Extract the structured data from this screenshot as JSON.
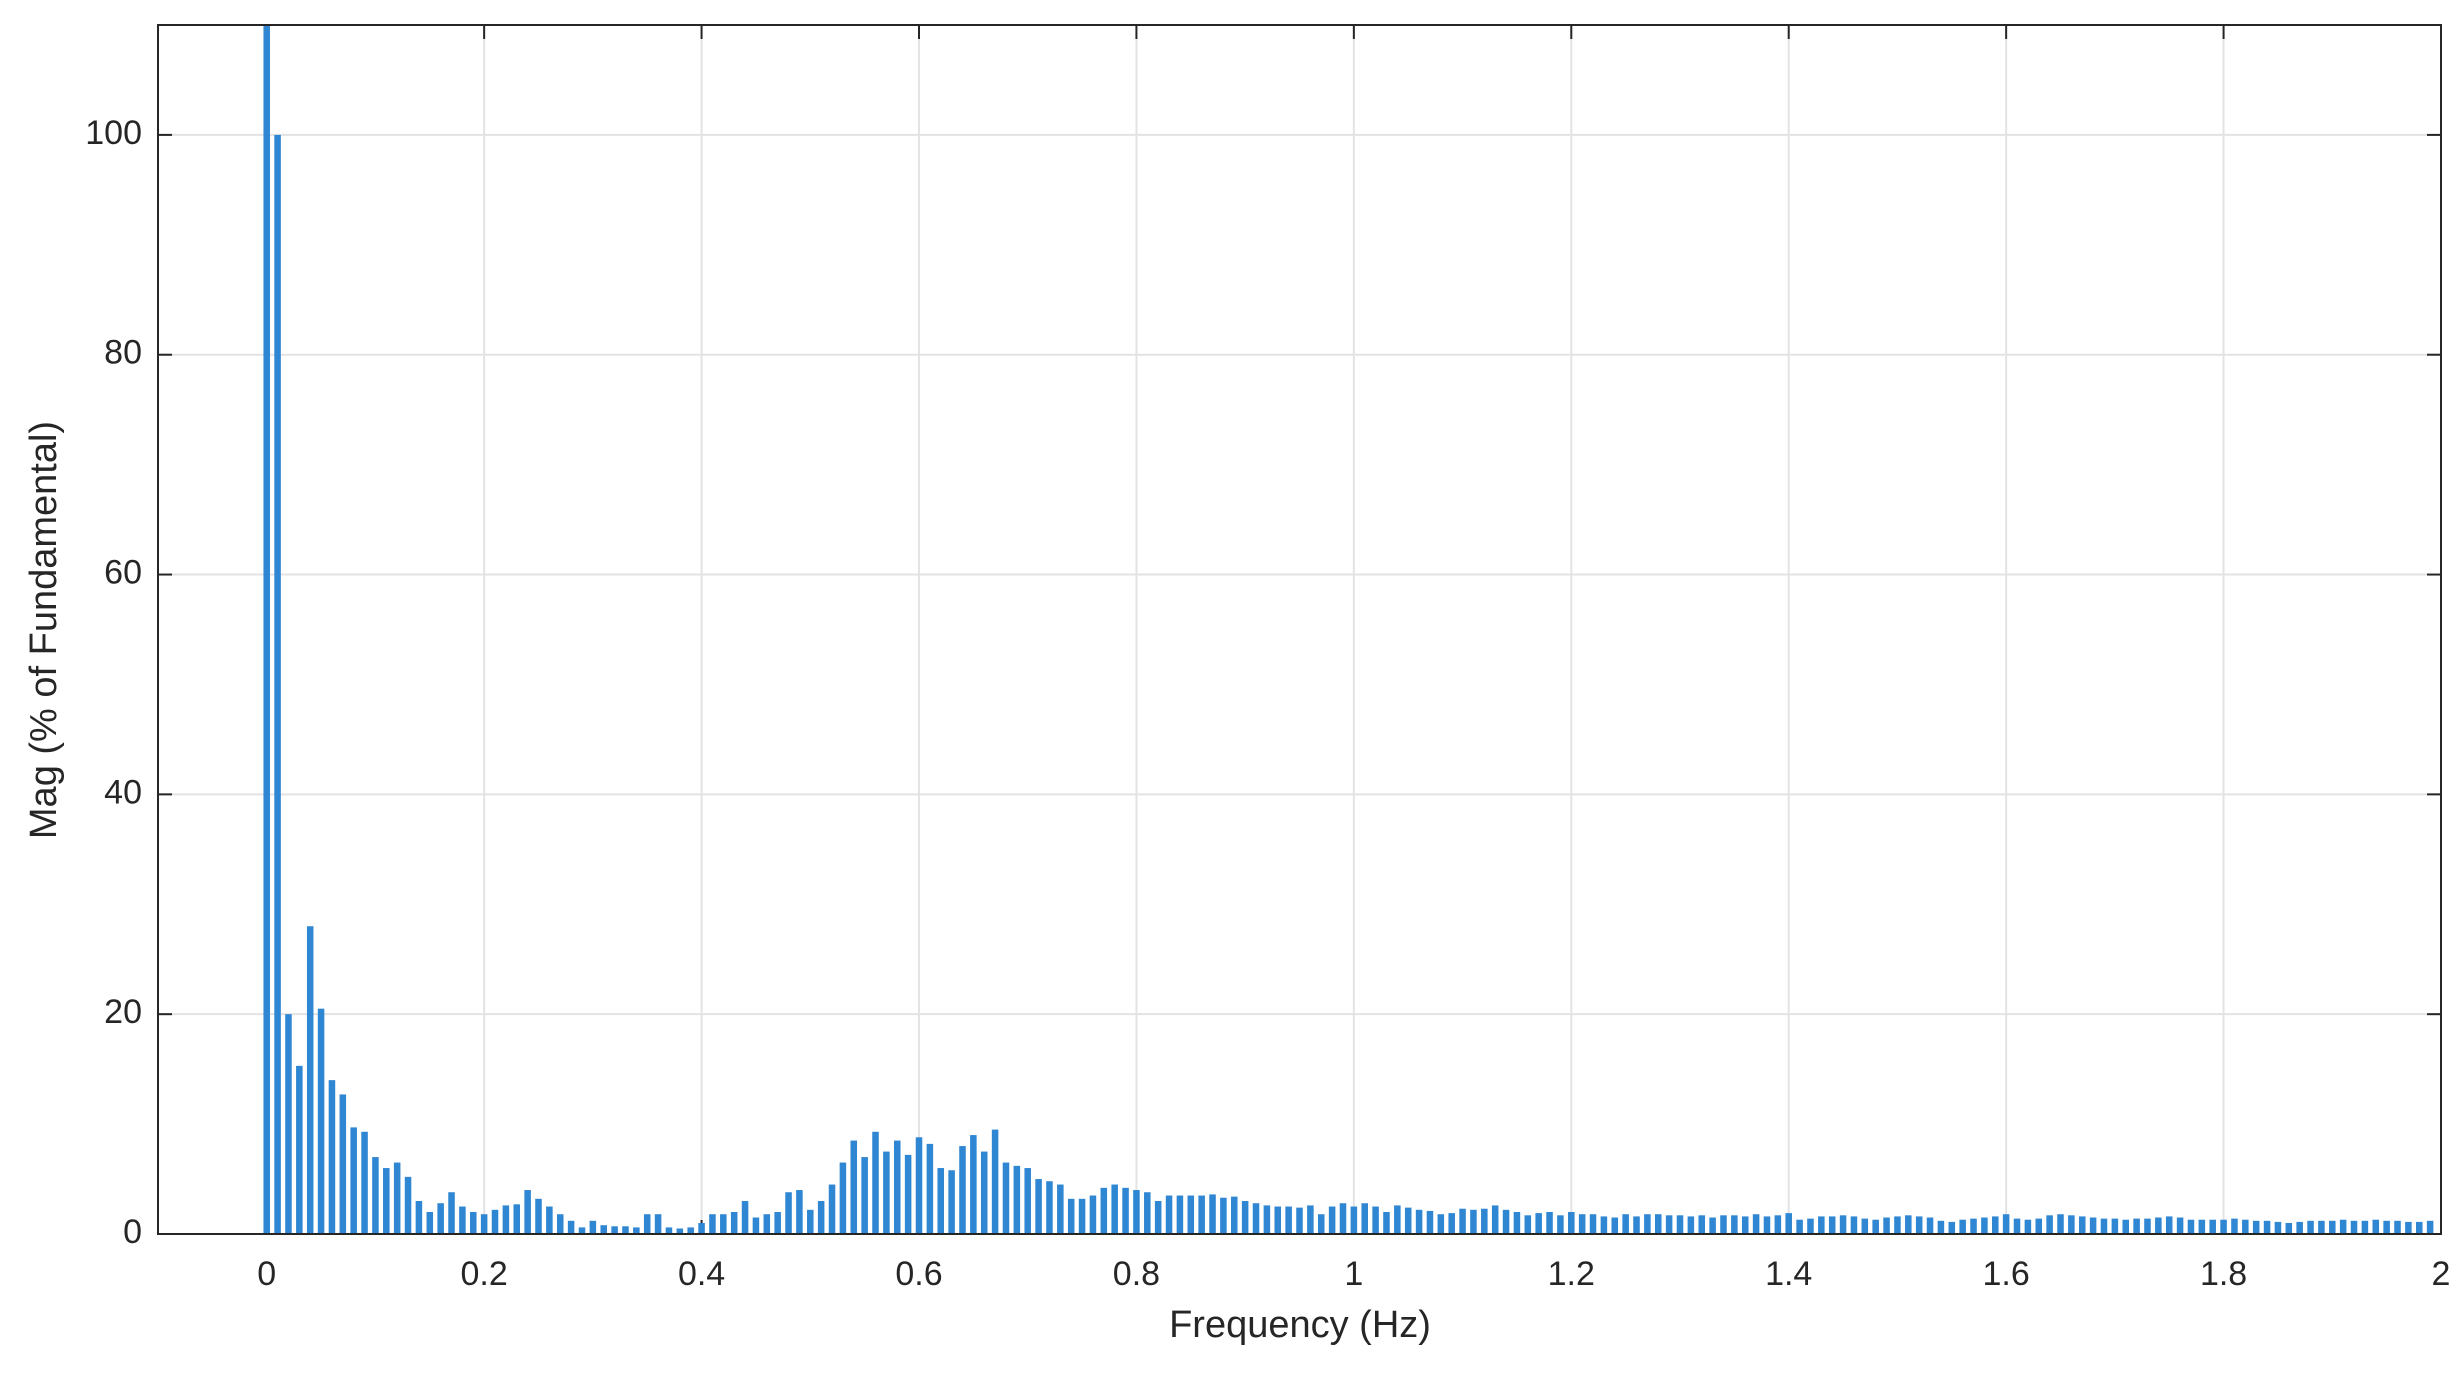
{
  "chart_data": {
    "type": "bar",
    "xlabel": "Frequency (Hz)",
    "ylabel": "Mag (% of Fundamental)",
    "x": [
      0,
      0.01,
      0.02,
      0.03,
      0.04,
      0.05,
      0.06,
      0.07,
      0.08,
      0.09,
      0.1,
      0.11,
      0.12,
      0.13,
      0.14,
      0.15,
      0.16,
      0.17,
      0.18,
      0.19,
      0.2,
      0.21,
      0.22,
      0.23,
      0.24,
      0.25,
      0.26,
      0.27,
      0.28,
      0.29,
      0.3,
      0.31,
      0.32,
      0.33,
      0.34,
      0.35,
      0.36,
      0.37,
      0.38,
      0.39,
      0.4,
      0.41,
      0.42,
      0.43,
      0.44,
      0.45,
      0.46,
      0.47,
      0.48,
      0.49,
      0.5,
      0.51,
      0.52,
      0.53,
      0.54,
      0.55,
      0.56,
      0.57,
      0.58,
      0.59,
      0.6,
      0.61,
      0.62,
      0.63,
      0.64,
      0.65,
      0.66,
      0.67,
      0.68,
      0.69,
      0.7,
      0.71,
      0.72,
      0.73,
      0.74,
      0.75,
      0.76,
      0.77,
      0.78,
      0.79,
      0.8,
      0.81,
      0.82,
      0.83,
      0.84,
      0.85,
      0.86,
      0.87,
      0.88,
      0.89,
      0.9,
      0.91,
      0.92,
      0.93,
      0.94,
      0.95,
      0.96,
      0.97,
      0.98,
      0.99,
      1,
      1.01,
      1.02,
      1.03,
      1.04,
      1.05,
      1.06,
      1.07,
      1.08,
      1.09,
      1.1,
      1.11,
      1.12,
      1.13,
      1.14,
      1.15,
      1.16,
      1.17,
      1.18,
      1.19,
      1.2,
      1.21,
      1.22,
      1.23,
      1.24,
      1.25,
      1.26,
      1.27,
      1.28,
      1.29,
      1.3,
      1.31,
      1.32,
      1.33,
      1.34,
      1.35,
      1.36,
      1.37,
      1.38,
      1.39,
      1.4,
      1.41,
      1.42,
      1.43,
      1.44,
      1.45,
      1.46,
      1.47,
      1.48,
      1.49,
      1.5,
      1.51,
      1.52,
      1.53,
      1.54,
      1.55,
      1.56,
      1.57,
      1.58,
      1.59,
      1.6,
      1.61,
      1.62,
      1.63,
      1.64,
      1.65,
      1.66,
      1.67,
      1.68,
      1.69,
      1.7,
      1.71,
      1.72,
      1.73,
      1.74,
      1.75,
      1.76,
      1.77,
      1.78,
      1.79,
      1.8,
      1.81,
      1.82,
      1.83,
      1.84,
      1.85,
      1.86,
      1.87,
      1.88,
      1.89,
      1.9,
      1.91,
      1.92,
      1.93,
      1.94,
      1.95,
      1.96,
      1.97,
      1.98,
      1.99
    ],
    "values": [
      110,
      100,
      20,
      15.3,
      28,
      20.5,
      14,
      12.7,
      9.7,
      9.3,
      7,
      6,
      6.5,
      5.2,
      3,
      2,
      2.8,
      3.8,
      2.5,
      2,
      1.8,
      2.2,
      2.6,
      2.7,
      4,
      3.2,
      2.5,
      1.8,
      1.2,
      0.6,
      1.2,
      0.8,
      0.7,
      0.7,
      0.6,
      1.8,
      1.8,
      0.6,
      0.5,
      0.6,
      1,
      1.8,
      1.8,
      2,
      3,
      1.5,
      1.8,
      2,
      3.8,
      4,
      2.2,
      3,
      4.5,
      6.5,
      8.5,
      7,
      9.3,
      7.5,
      8.5,
      7.2,
      8.8,
      8.2,
      6,
      5.8,
      8,
      9,
      7.5,
      9.5,
      6.5,
      6.2,
      6,
      5,
      4.8,
      4.5,
      3.2,
      3.2,
      3.5,
      4.2,
      4.5,
      4.2,
      4,
      3.8,
      3,
      3.5,
      3.5,
      3.5,
      3.5,
      3.6,
      3.3,
      3.4,
      3,
      2.8,
      2.6,
      2.5,
      2.5,
      2.4,
      2.6,
      1.8,
      2.5,
      2.8,
      2.5,
      2.8,
      2.5,
      2,
      2.6,
      2.4,
      2.2,
      2.1,
      1.8,
      1.9,
      2.3,
      2.2,
      2.3,
      2.6,
      2.2,
      2,
      1.7,
      1.9,
      2,
      1.7,
      2,
      1.8,
      1.8,
      1.6,
      1.5,
      1.8,
      1.6,
      1.8,
      1.8,
      1.7,
      1.7,
      1.6,
      1.7,
      1.5,
      1.7,
      1.7,
      1.6,
      1.8,
      1.6,
      1.7,
      1.9,
      1.3,
      1.4,
      1.6,
      1.6,
      1.7,
      1.6,
      1.4,
      1.3,
      1.5,
      1.6,
      1.7,
      1.6,
      1.5,
      1.2,
      1.1,
      1.3,
      1.4,
      1.5,
      1.6,
      1.8,
      1.4,
      1.3,
      1.4,
      1.7,
      1.8,
      1.7,
      1.6,
      1.5,
      1.4,
      1.4,
      1.3,
      1.4,
      1.4,
      1.5,
      1.6,
      1.5,
      1.3,
      1.3,
      1.3,
      1.3,
      1.4,
      1.3,
      1.2,
      1.2,
      1.1,
      1,
      1.1,
      1.2,
      1.2,
      1.2,
      1.3,
      1.2,
      1.2,
      1.3,
      1.2,
      1.2,
      1.1,
      1.1,
      1.2
    ],
    "color": "#2f86d2",
    "xlim": [
      -0.1,
      2
    ],
    "ylim": [
      0,
      110
    ],
    "xticks": [
      0,
      0.2,
      0.4,
      0.6,
      0.8,
      1,
      1.2,
      1.4,
      1.6,
      1.8,
      2
    ],
    "yticks": [
      0,
      20,
      40,
      60,
      80,
      100
    ],
    "grid": true
  }
}
